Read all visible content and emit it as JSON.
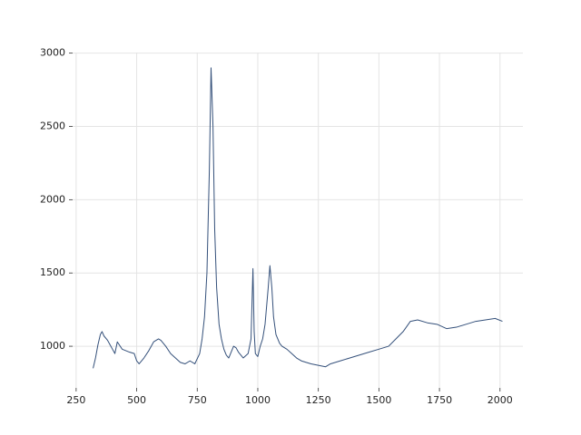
{
  "chart_data": {
    "type": "line",
    "x": [
      320,
      330,
      340,
      350,
      357,
      365,
      380,
      400,
      410,
      420,
      440,
      470,
      490,
      500,
      510,
      530,
      550,
      570,
      590,
      600,
      620,
      640,
      660,
      680,
      700,
      720,
      740,
      760,
      770,
      780,
      790,
      800,
      807,
      815,
      822,
      830,
      840,
      850,
      860,
      870,
      880,
      890,
      900,
      910,
      920,
      940,
      960,
      972,
      980,
      985,
      990,
      1000,
      1010,
      1020,
      1030,
      1043,
      1050,
      1058,
      1065,
      1075,
      1090,
      1100,
      1120,
      1140,
      1160,
      1180,
      1200,
      1220,
      1250,
      1280,
      1300,
      1340,
      1380,
      1420,
      1460,
      1500,
      1540,
      1570,
      1600,
      1630,
      1660,
      1700,
      1740,
      1780,
      1820,
      1860,
      1900,
      1940,
      1980,
      2010
    ],
    "series": [
      {
        "color": "#34507a",
        "values": [
          850,
          920,
          1010,
          1080,
          1100,
          1070,
          1040,
          980,
          950,
          1030,
          980,
          960,
          950,
          900,
          880,
          920,
          970,
          1030,
          1050,
          1040,
          1000,
          950,
          920,
          890,
          880,
          900,
          880,
          950,
          1050,
          1200,
          1500,
          2200,
          2900,
          2500,
          1800,
          1400,
          1150,
          1050,
          980,
          940,
          920,
          960,
          1000,
          990,
          960,
          920,
          950,
          1050,
          1530,
          1100,
          950,
          930,
          1000,
          1050,
          1150,
          1400,
          1550,
          1400,
          1200,
          1080,
          1020,
          1000,
          980,
          950,
          920,
          900,
          890,
          880,
          870,
          860,
          880,
          900,
          920,
          940,
          960,
          980,
          1000,
          1050,
          1100,
          1170,
          1180,
          1160,
          1150,
          1120,
          1130,
          1150,
          1170,
          1180,
          1190,
          1170
        ]
      }
    ],
    "xlim": [
      235.5,
      2094.5
    ],
    "ylim": [
      716,
      3004
    ],
    "xticks": [
      250,
      500,
      750,
      1000,
      1250,
      1500,
      1750,
      2000
    ],
    "yticks": [
      1000,
      1500,
      2000,
      2500,
      3000
    ],
    "grid": true
  }
}
